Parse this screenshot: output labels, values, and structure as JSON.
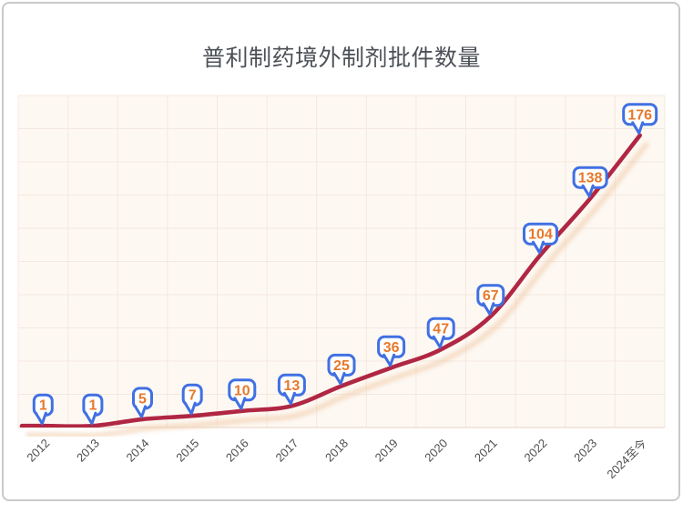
{
  "card": {
    "border_color": "#c9c9c9",
    "background": "#ffffff"
  },
  "chart_data": {
    "type": "line",
    "title": "普利制药境外制剂批件数量",
    "categories": [
      "2012",
      "2013",
      "2014",
      "2015",
      "2016",
      "2017",
      "2018",
      "2019",
      "2020",
      "2021",
      "2022",
      "2023",
      "2024至今"
    ],
    "values": [
      1,
      1,
      5,
      7,
      10,
      13,
      25,
      36,
      47,
      67,
      104,
      138,
      176
    ],
    "xlabel": "",
    "ylabel": "",
    "ylim": [
      0,
      200
    ],
    "y_grid_step": 20,
    "grid": "on",
    "legend": "none",
    "data_labels": "callout-bubbles",
    "smooth": true,
    "colors": {
      "line": "#b02743",
      "line_shadow": "#f0c9a5",
      "plot_bg": "#fdf8f2",
      "grid_line": "#f4e8e0",
      "axis_line": "#eedacd",
      "callout_border": "#4170e2",
      "callout_fill": "#ffffff",
      "callout_text": "#e7792a",
      "axis_label": "#4d4d4d",
      "title": "#4c5157"
    }
  }
}
